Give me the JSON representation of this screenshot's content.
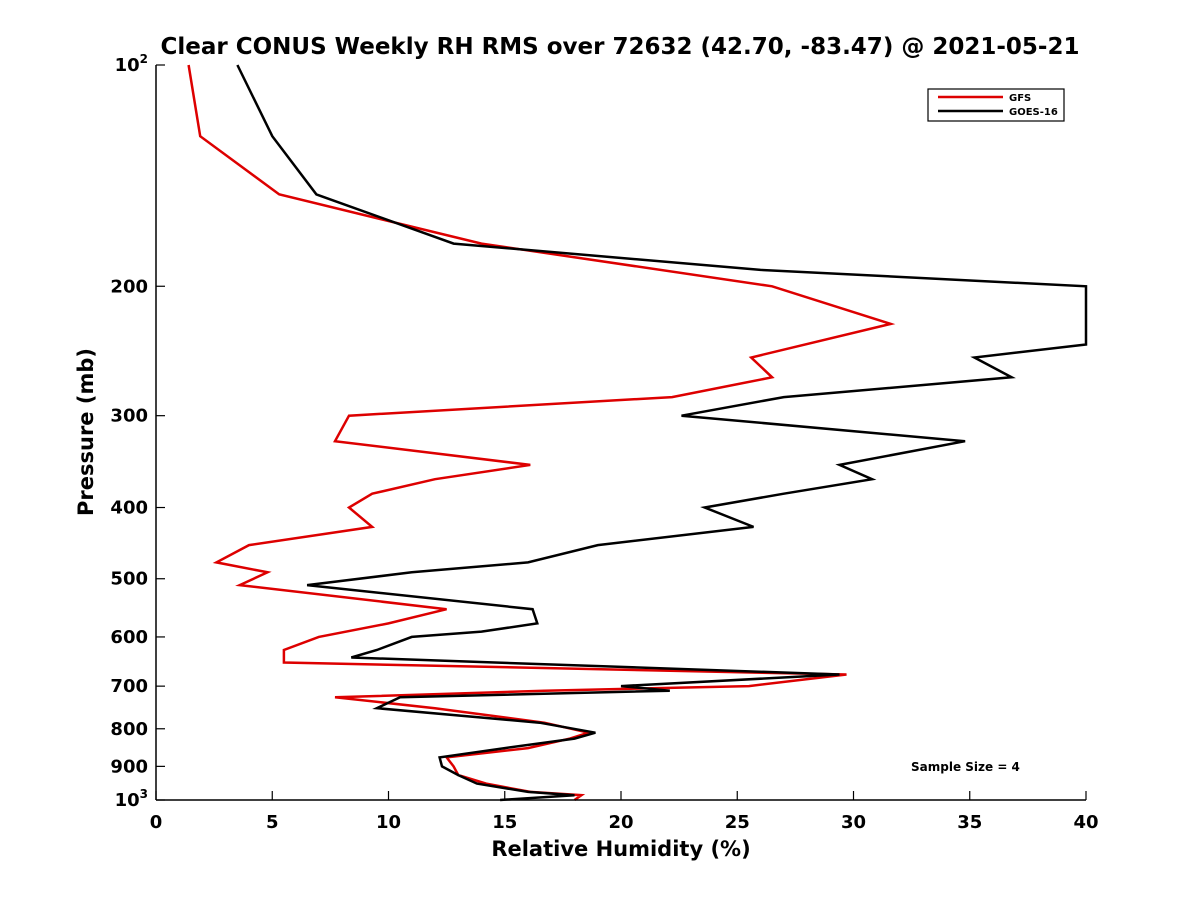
{
  "chart_data": {
    "type": "line",
    "title": "Clear CONUS Weekly RH RMS over 72632 (42.70, -83.47) @ 2021-05-21",
    "xlabel": "Relative Humidity (%)",
    "ylabel": "Pressure (mb)",
    "xlim": [
      0,
      40
    ],
    "ylim": [
      100,
      1000
    ],
    "yscale": "log",
    "y_reversed": true,
    "grid": false,
    "legend_position": "top-right",
    "xticks": [
      "0",
      "5",
      "10",
      "15",
      "20",
      "25",
      "30",
      "35",
      "40"
    ],
    "xtick_values": [
      0,
      5,
      10,
      15,
      20,
      25,
      30,
      35,
      40
    ],
    "yticks": [
      {
        "value": 100,
        "base": "10",
        "exp": "2"
      },
      {
        "value": 200,
        "label": "200"
      },
      {
        "value": 300,
        "label": "300"
      },
      {
        "value": 400,
        "label": "400"
      },
      {
        "value": 500,
        "label": "500"
      },
      {
        "value": 600,
        "label": "600"
      },
      {
        "value": 700,
        "label": "700"
      },
      {
        "value": 800,
        "label": "800"
      },
      {
        "value": 900,
        "label": "900"
      },
      {
        "value": 1000,
        "base": "10",
        "exp": "3"
      }
    ],
    "annotation": "Sample Size = 4",
    "series": [
      {
        "name": "GFS",
        "color": "#dd0000",
        "points": [
          [
            1.4,
            100
          ],
          [
            1.9,
            125
          ],
          [
            5.3,
            150
          ],
          [
            14,
            175
          ],
          [
            26.5,
            200
          ],
          [
            31.6,
            225
          ],
          [
            25.6,
            250
          ],
          [
            26.5,
            266
          ],
          [
            22.2,
            283
          ],
          [
            8.3,
            300
          ],
          [
            7.7,
            325
          ],
          [
            16.1,
            350
          ],
          [
            12.0,
            366
          ],
          [
            9.3,
            383
          ],
          [
            8.3,
            400
          ],
          [
            9.3,
            425
          ],
          [
            4.0,
            450
          ],
          [
            2.6,
            475
          ],
          [
            4.8,
            490
          ],
          [
            3.6,
            510
          ],
          [
            12.5,
            550
          ],
          [
            10.0,
            575
          ],
          [
            7.0,
            600
          ],
          [
            5.5,
            625
          ],
          [
            5.5,
            650
          ],
          [
            29.7,
            675
          ],
          [
            25.5,
            700
          ],
          [
            16.7,
            710
          ],
          [
            7.7,
            725
          ],
          [
            12.0,
            750
          ],
          [
            16.7,
            785
          ],
          [
            18.6,
            810
          ],
          [
            17.8,
            825
          ],
          [
            16.0,
            850
          ],
          [
            12.5,
            875
          ],
          [
            12.8,
            900
          ],
          [
            13.0,
            925
          ],
          [
            14.2,
            950
          ],
          [
            16.1,
            975
          ],
          [
            18.3,
            985
          ],
          [
            18.0,
            1000
          ]
        ]
      },
      {
        "name": "GOES-16",
        "color": "#000000",
        "points": [
          [
            3.5,
            100
          ],
          [
            5.0,
            125
          ],
          [
            6.9,
            150
          ],
          [
            12.8,
            175
          ],
          [
            26.0,
            190
          ],
          [
            40,
            200
          ],
          [
            40,
            240
          ],
          [
            35.2,
            250
          ],
          [
            36.8,
            266
          ],
          [
            27.0,
            283
          ],
          [
            22.6,
            300
          ],
          [
            34.8,
            325
          ],
          [
            29.4,
            350
          ],
          [
            30.8,
            366
          ],
          [
            27.0,
            383
          ],
          [
            23.6,
            400
          ],
          [
            25.7,
            425
          ],
          [
            19.0,
            450
          ],
          [
            16.0,
            475
          ],
          [
            11.0,
            490
          ],
          [
            6.5,
            510
          ],
          [
            16.2,
            550
          ],
          [
            16.4,
            575
          ],
          [
            14.0,
            590
          ],
          [
            11.0,
            600
          ],
          [
            9.5,
            625
          ],
          [
            8.4,
            640
          ],
          [
            29.4,
            675
          ],
          [
            20.0,
            700
          ],
          [
            22.1,
            710
          ],
          [
            10.5,
            725
          ],
          [
            9.5,
            750
          ],
          [
            16.5,
            785
          ],
          [
            18.9,
            810
          ],
          [
            18.0,
            825
          ],
          [
            15.0,
            850
          ],
          [
            12.2,
            875
          ],
          [
            12.3,
            900
          ],
          [
            13.0,
            925
          ],
          [
            13.8,
            950
          ],
          [
            16.0,
            975
          ],
          [
            18.0,
            985
          ],
          [
            14.8,
            1000
          ]
        ]
      }
    ]
  }
}
